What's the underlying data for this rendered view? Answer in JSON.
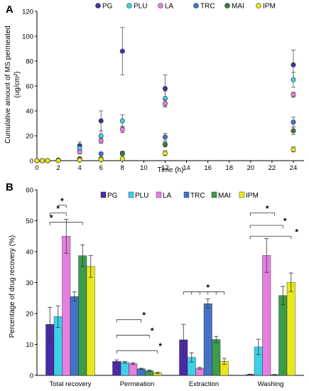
{
  "chart_data": [
    {
      "panel": "A",
      "type": "scatter",
      "title": "",
      "xlabel": "Time (h)",
      "ylabel_line1": "Cumulative amount of MS permeated",
      "ylabel_line2": "(ug/cm²)",
      "xlim": [
        0,
        25
      ],
      "ylim": [
        0,
        120
      ],
      "xticks": [
        0,
        2,
        4,
        6,
        8,
        10,
        12,
        14,
        16,
        18,
        20,
        22,
        24
      ],
      "yticks": [
        0,
        20,
        40,
        60,
        80,
        100,
        120
      ],
      "legend_position": "top",
      "series": [
        {
          "name": "PG",
          "color": "#4b2aa8",
          "x": [
            0,
            0.5,
            1,
            2,
            4,
            6,
            8,
            12,
            24
          ],
          "y": [
            0,
            0,
            0,
            0.5,
            12,
            32,
            88,
            58,
            77
          ],
          "err": [
            0,
            0,
            0,
            0.5,
            3,
            8,
            19,
            11,
            12
          ]
        },
        {
          "name": "PLU",
          "color": "#3fd0e8",
          "x": [
            0,
            0.5,
            1,
            2,
            4,
            6,
            8,
            12,
            24
          ],
          "y": [
            0,
            0,
            0,
            0.3,
            10,
            20,
            32,
            50,
            65
          ],
          "err": [
            0,
            0,
            0,
            0.3,
            2,
            4,
            5,
            6,
            6
          ]
        },
        {
          "name": "LA",
          "color": "#e67fe0",
          "x": [
            0,
            0.5,
            1,
            2,
            4,
            6,
            8,
            12,
            24
          ],
          "y": [
            0,
            0,
            0,
            0.3,
            7,
            16,
            25,
            46,
            53
          ],
          "err": [
            0,
            0,
            0,
            0.2,
            1.5,
            2,
            2.5,
            3,
            2
          ]
        },
        {
          "name": "TRC",
          "color": "#4472c4",
          "x": [
            0,
            0.5,
            1,
            2,
            4,
            6,
            8,
            12,
            24
          ],
          "y": [
            0,
            0,
            0,
            0.2,
            1.5,
            5.5,
            6,
            19,
            31
          ],
          "err": [
            0,
            0,
            0,
            0.2,
            0.5,
            1,
            1.5,
            3,
            4
          ]
        },
        {
          "name": "MAI",
          "color": "#3c7a3a",
          "x": [
            0,
            0.5,
            1,
            2,
            4,
            6,
            8,
            12,
            24
          ],
          "y": [
            0,
            0,
            0,
            0.1,
            1,
            1.5,
            5.5,
            13,
            24
          ],
          "err": [
            0,
            0,
            0,
            0.1,
            0.5,
            1,
            1,
            2,
            3
          ]
        },
        {
          "name": "IPM",
          "color": "#e8e81a",
          "x": [
            0,
            0.5,
            1,
            2,
            4,
            6,
            8,
            12,
            24
          ],
          "y": [
            0,
            0,
            0,
            0,
            0.5,
            1,
            1.5,
            6,
            9
          ],
          "err": [
            0,
            0,
            0,
            0,
            0.3,
            0.5,
            0.5,
            2,
            2
          ]
        }
      ]
    },
    {
      "panel": "B",
      "type": "bar",
      "title": "",
      "xlabel": "",
      "ylabel": "Percentage of drug recovery (%)",
      "ylim": [
        0,
        60
      ],
      "yticks": [
        0,
        10,
        20,
        30,
        40,
        50,
        60
      ],
      "legend_position": "top",
      "categories": [
        "Total recovery",
        "Permeation",
        "Extraction",
        "Washing"
      ],
      "significance_marker": "*",
      "series": [
        {
          "name": "PG",
          "color": "#4b2aa8",
          "values": [
            16.5,
            4.5,
            11.5,
            0.3
          ],
          "err": [
            5.5,
            0.5,
            5,
            0.1
          ]
        },
        {
          "name": "PLU",
          "color": "#3fd0e8",
          "values": [
            19,
            4.2,
            5.8,
            9.2
          ],
          "err": [
            3.5,
            0.3,
            1.5,
            2.5
          ]
        },
        {
          "name": "LA",
          "color": "#e67fe0",
          "values": [
            45,
            3.8,
            2.3,
            38.8
          ],
          "err": [
            5.5,
            0.3,
            0.3,
            5.5
          ]
        },
        {
          "name": "TRC",
          "color": "#4472c4",
          "values": [
            25.5,
            2.1,
            23.2,
            0.2
          ],
          "err": [
            1.5,
            0.2,
            1.5,
            0.1
          ]
        },
        {
          "name": "MAI",
          "color": "#3c9c4a",
          "values": [
            38.7,
            1.5,
            11.6,
            25.8
          ],
          "err": [
            3.5,
            0.2,
            1,
            3
          ]
        },
        {
          "name": "IPM",
          "color": "#e8e81a",
          "values": [
            35.2,
            0.8,
            4.5,
            30.1
          ],
          "err": [
            3.5,
            0.2,
            1,
            3
          ]
        }
      ]
    }
  ]
}
